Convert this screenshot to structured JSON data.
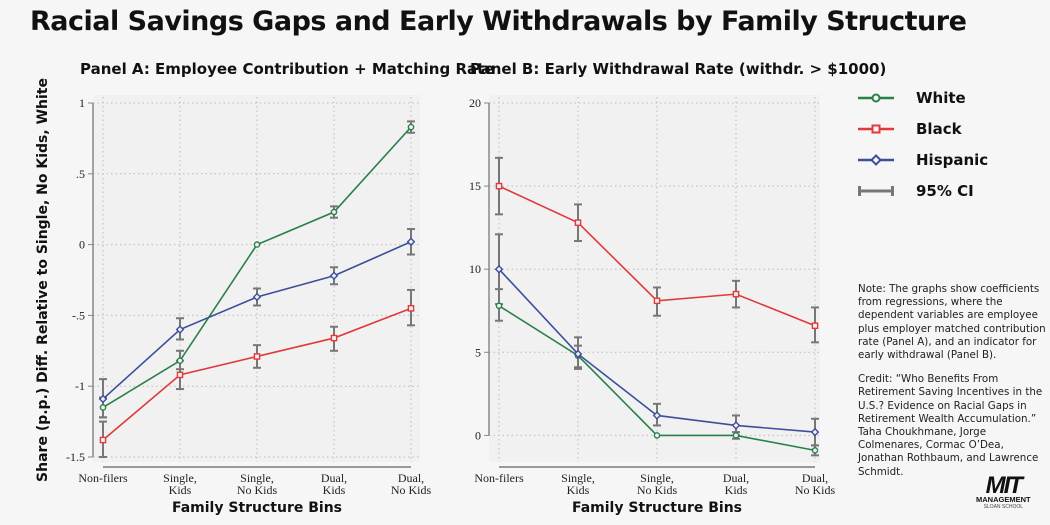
{
  "title": "Racial Savings Gaps and Early Withdrawals by Family Structure",
  "colors": {
    "White": "#2a8049",
    "Black": "#e03a3a",
    "Hispanic": "#3d4f9c",
    "CI": "#777777"
  },
  "legend": [
    {
      "label": "White",
      "marker": "circle"
    },
    {
      "label": "Black",
      "marker": "square"
    },
    {
      "label": "Hispanic",
      "marker": "diamond"
    },
    {
      "label": "95% CI",
      "marker": "errorbar"
    }
  ],
  "note": "Note: The graphs show coefficients from regressions, where the dependent variables are employee plus employer matched contribution rate (Panel A), and an indicator for early withdrawal (Panel B).",
  "credit": "Credit: “Who Benefits From Retirement Saving Incentives in the U.S.? Evidence on Racial Gaps in Retirement Wealth Accumulation.” Taha Choukhmane, Jorge Colmenares, Cormac O’Dea, Jonathan Rothbaum, and Lawrence Schmidt.",
  "logo": {
    "line1": "MIT",
    "line2": "MANAGEMENT",
    "line3": "SLOAN SCHOOL"
  },
  "chart_data": [
    {
      "type": "line",
      "title": "Panel A: Employee Contribution + Matching Rate",
      "xlabel": "Family Structure Bins",
      "ylabel": "Share (p.p.) Diff. Relative to Single, No Kids, White",
      "categories": [
        "Non-filers",
        "Single,\nKids",
        "Single,\nNo Kids",
        "Dual,\nKids",
        "Dual,\nNo Kids"
      ],
      "yticks": [
        1,
        0.5,
        0,
        -0.5,
        -1,
        -1.5
      ],
      "ytick_labels": [
        "1",
        ".5",
        "0",
        "-.5",
        "-1",
        "-1.5"
      ],
      "ylim": [
        -1.5,
        1
      ],
      "grid": true,
      "series": [
        {
          "name": "White",
          "values": [
            -1.15,
            -0.82,
            0,
            0.23,
            0.83
          ],
          "ci_low": [
            -1.22,
            -0.88,
            null,
            0.19,
            0.79
          ],
          "ci_high": [
            -1.08,
            -0.75,
            null,
            0.27,
            0.87
          ]
        },
        {
          "name": "Black",
          "values": [
            -1.38,
            -0.92,
            -0.79,
            -0.66,
            -0.45
          ],
          "ci_low": [
            -1.5,
            -1.02,
            -0.87,
            -0.75,
            -0.57
          ],
          "ci_high": [
            -1.25,
            -0.82,
            -0.71,
            -0.58,
            -0.32
          ]
        },
        {
          "name": "Hispanic",
          "values": [
            -1.09,
            -0.6,
            -0.37,
            -0.22,
            0.02
          ],
          "ci_low": [
            -1.22,
            -0.67,
            -0.43,
            -0.28,
            -0.07
          ],
          "ci_high": [
            -0.95,
            -0.52,
            -0.31,
            -0.16,
            0.11
          ]
        }
      ]
    },
    {
      "type": "line",
      "title": "Panel B: Early Withdrawal Rate (withdr. > $1000)",
      "xlabel": "Family Structure Bins",
      "ylabel": "",
      "categories": [
        "Non-filers",
        "Single,\nKids",
        "Single,\nNo Kids",
        "Dual,\nKids",
        "Dual,\nNo Kids"
      ],
      "yticks": [
        20,
        15,
        10,
        5,
        0
      ],
      "ytick_labels": [
        "20",
        "15",
        "10",
        "5",
        "0"
      ],
      "ylim": [
        -1.6,
        20
      ],
      "grid": true,
      "series": [
        {
          "name": "White",
          "values": [
            7.8,
            4.8,
            0,
            0,
            -0.9
          ],
          "ci_low": [
            6.9,
            4.1,
            null,
            -0.2,
            -1.2
          ],
          "ci_high": [
            8.8,
            5.4,
            null,
            0.2,
            -0.6
          ]
        },
        {
          "name": "Black",
          "values": [
            15,
            12.8,
            8.1,
            8.5,
            6.6
          ],
          "ci_low": [
            13.3,
            11.7,
            7.2,
            7.7,
            5.6
          ],
          "ci_high": [
            16.7,
            13.9,
            8.9,
            9.3,
            7.7
          ]
        },
        {
          "name": "Hispanic",
          "values": [
            10,
            4.9,
            1.2,
            0.6,
            0.2
          ],
          "ci_low": [
            7.9,
            4.0,
            0.6,
            0.0,
            -0.6
          ],
          "ci_high": [
            12.1,
            5.9,
            1.9,
            1.2,
            1.0
          ]
        }
      ]
    }
  ]
}
